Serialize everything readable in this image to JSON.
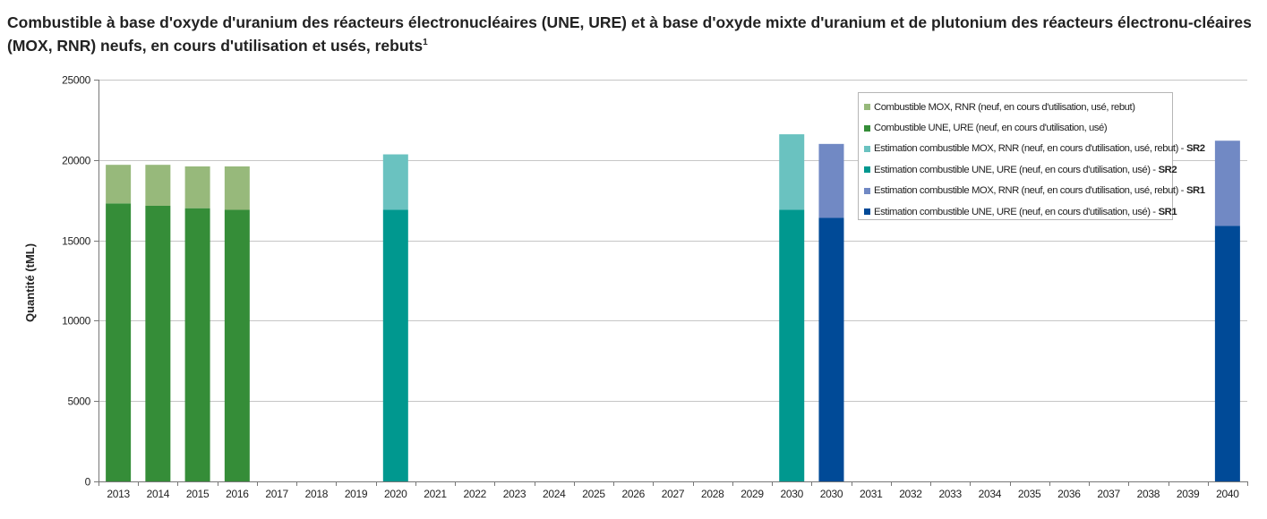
{
  "title": "Combustible à base d'oxyde d'uranium des réacteurs électronucléaires (UNE, URE) et à base d'oxyde mixte d'uranium et de plutonium des réacteurs électronu-cléaires (MOX, RNR) neufs, en cours d'utilisation et usés, rebuts",
  "title_footnote": "1",
  "chart_data": {
    "type": "bar",
    "stacked": true,
    "ylabel": "Quantité (tML)",
    "ylim": [
      0,
      25000
    ],
    "yticks": [
      0,
      5000,
      10000,
      15000,
      20000,
      25000
    ],
    "ytick_labels": [
      "0",
      "5000",
      "10000",
      "15000",
      "20000",
      "25000"
    ],
    "grid": true,
    "legend_position": "top-right",
    "categories": [
      "2013",
      "2014",
      "2015",
      "2016",
      "2017",
      "2018",
      "2019",
      "2020",
      "2021",
      "2022",
      "2023",
      "2024",
      "2025",
      "2026",
      "2027",
      "2028",
      "2029",
      "2030",
      "2030",
      "2031",
      "2032",
      "2033",
      "2034",
      "2035",
      "2036",
      "2037",
      "2038",
      "2039",
      "2040"
    ],
    "series": [
      {
        "name": "Combustible MOX, RNR (neuf, en cours d'utilisation, usé, rebut)",
        "suffix": "",
        "color": "#97b97b",
        "layer": "top",
        "values": [
          2400,
          2550,
          2600,
          2700,
          null,
          null,
          null,
          null,
          null,
          null,
          null,
          null,
          null,
          null,
          null,
          null,
          null,
          null,
          null,
          null,
          null,
          null,
          null,
          null,
          null,
          null,
          null,
          null,
          null
        ]
      },
      {
        "name": "Combustible UNE, URE (neuf, en cours d'utilisation, usé)",
        "suffix": "",
        "color": "#358d38",
        "layer": "bottom",
        "values": [
          17300,
          17150,
          17000,
          16900,
          null,
          null,
          null,
          null,
          null,
          null,
          null,
          null,
          null,
          null,
          null,
          null,
          null,
          null,
          null,
          null,
          null,
          null,
          null,
          null,
          null,
          null,
          null,
          null,
          null
        ]
      },
      {
        "name": "Estimation combustible MOX, RNR (neuf, en cours d'utilisation, usé, rebut) -",
        "suffix": "SR2",
        "color": "#6ac2c0",
        "layer": "top",
        "values": [
          null,
          null,
          null,
          null,
          null,
          null,
          null,
          3450,
          null,
          null,
          null,
          null,
          null,
          null,
          null,
          null,
          null,
          4700,
          null,
          null,
          null,
          null,
          null,
          null,
          null,
          null,
          null,
          null,
          null
        ]
      },
      {
        "name": "Estimation combustible UNE, URE (neuf, en cours d'utilisation, usé) -",
        "suffix": "SR2",
        "color": "#00988f",
        "layer": "bottom",
        "values": [
          null,
          null,
          null,
          null,
          null,
          null,
          null,
          16900,
          null,
          null,
          null,
          null,
          null,
          null,
          null,
          null,
          null,
          16900,
          null,
          null,
          null,
          null,
          null,
          null,
          null,
          null,
          null,
          null,
          null
        ]
      },
      {
        "name": "Estimation combustible MOX, RNR (neuf, en cours d'utilisation, usé, rebut) -",
        "suffix": "SR1",
        "color": "#7189c4",
        "layer": "top",
        "values": [
          null,
          null,
          null,
          null,
          null,
          null,
          null,
          null,
          null,
          null,
          null,
          null,
          null,
          null,
          null,
          null,
          null,
          null,
          4600,
          null,
          null,
          null,
          null,
          null,
          null,
          null,
          null,
          null,
          5300
        ]
      },
      {
        "name": "Estimation combustible UNE, URE (neuf, en cours d'utilisation, usé) -",
        "suffix": "SR1",
        "color": "#004a97",
        "layer": "bottom",
        "values": [
          null,
          null,
          null,
          null,
          null,
          null,
          null,
          null,
          null,
          null,
          null,
          null,
          null,
          null,
          null,
          null,
          null,
          null,
          16400,
          null,
          null,
          null,
          null,
          null,
          null,
          null,
          null,
          null,
          15900
        ]
      }
    ]
  }
}
